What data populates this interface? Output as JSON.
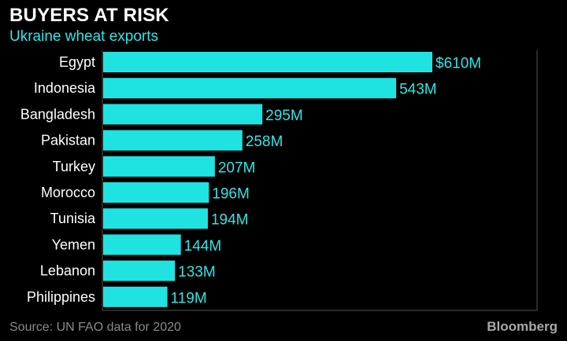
{
  "header": {
    "title": "BUYERS AT RISK",
    "subtitle": "Ukraine wheat exports"
  },
  "footer": {
    "source": "Source: UN FAO data for 2020",
    "brand": "Bloomberg"
  },
  "colors": {
    "background": "#000000",
    "bar": "#1fe3e0",
    "value_label": "#2ee6e6",
    "category_label": "#ffffff",
    "axis": "#555555"
  },
  "chart_data": {
    "type": "bar",
    "orientation": "horizontal",
    "categories": [
      "Egypt",
      "Indonesia",
      "Bangladesh",
      "Pakistan",
      "Turkey",
      "Morocco",
      "Tunisia",
      "Yemen",
      "Lebanon",
      "Philippines"
    ],
    "values": [
      610,
      543,
      295,
      258,
      207,
      196,
      194,
      144,
      133,
      119
    ],
    "value_labels": [
      "$610M",
      "543M",
      "295M",
      "258M",
      "207M",
      "196M",
      "194M",
      "144M",
      "133M",
      "119M"
    ],
    "unit": "USD millions",
    "xlim": [
      0,
      610
    ],
    "grid": false
  }
}
